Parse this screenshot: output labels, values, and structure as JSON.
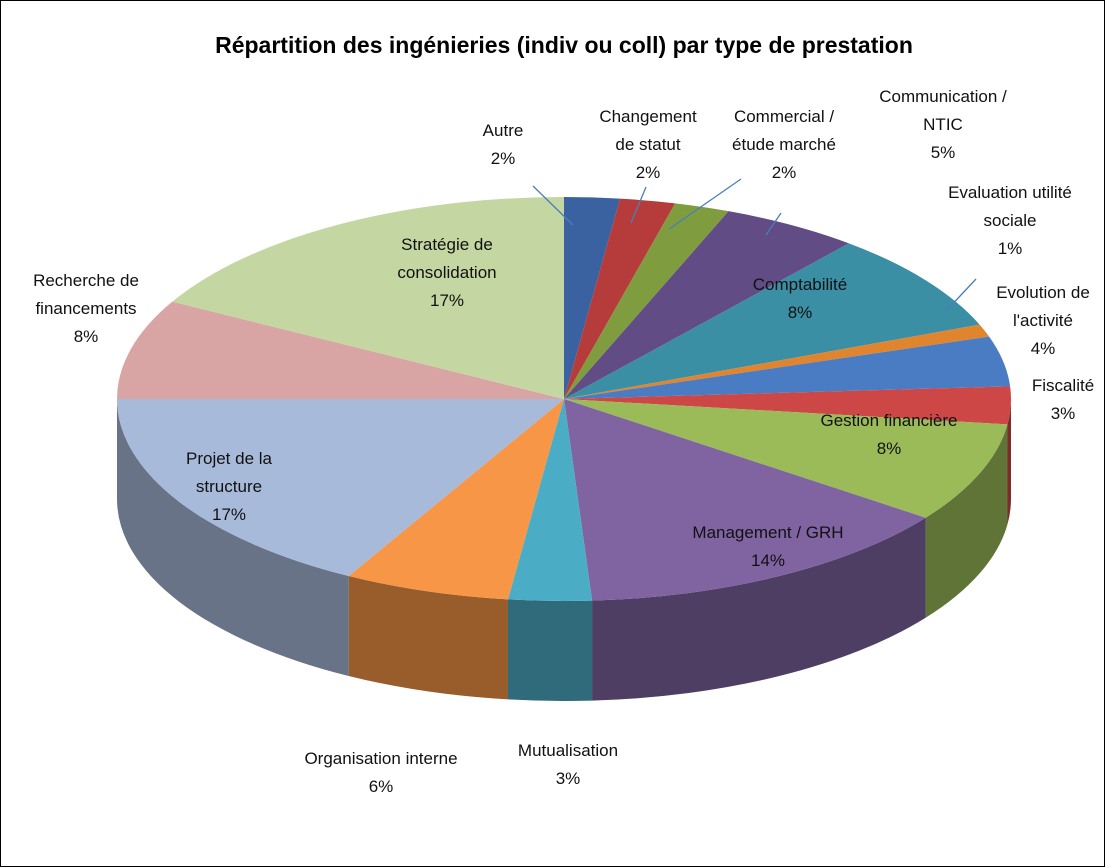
{
  "chart_data": {
    "type": "pie3d",
    "title": "Répartition des ingénieries (indiv ou coll) par type de prestation",
    "categories": [
      "Autre",
      "Changement de statut",
      "Commercial / étude marché",
      "Communication / NTIC",
      "Comptabilité",
      "Evaluation utilité sociale",
      "Evolution de l'activité",
      "Fiscalité",
      "Gestion financière",
      "Management / GRH",
      "Mutualisation",
      "Organisation interne",
      "Projet de la structure",
      "Recherche de financements",
      "Stratégie de consolidation"
    ],
    "values": [
      2,
      2,
      2,
      5,
      8,
      1,
      4,
      3,
      8,
      14,
      3,
      6,
      17,
      8,
      17
    ],
    "value_labels": [
      "2%",
      "2%",
      "2%",
      "5%",
      "8%",
      "1%",
      "4%",
      "3%",
      "8%",
      "14%",
      "3%",
      "6%",
      "17%",
      "8%",
      "17%"
    ],
    "colors": [
      "#3b62a0",
      "#b53c3a",
      "#7f9d3f",
      "#614c86",
      "#3b8fa5",
      "#e0852e",
      "#4a7cc4",
      "#cc4745",
      "#9bbb59",
      "#8064a2",
      "#4bacc6",
      "#f79646",
      "#a8bad9",
      "#d9a5a4",
      "#c4d6a1"
    ]
  }
}
